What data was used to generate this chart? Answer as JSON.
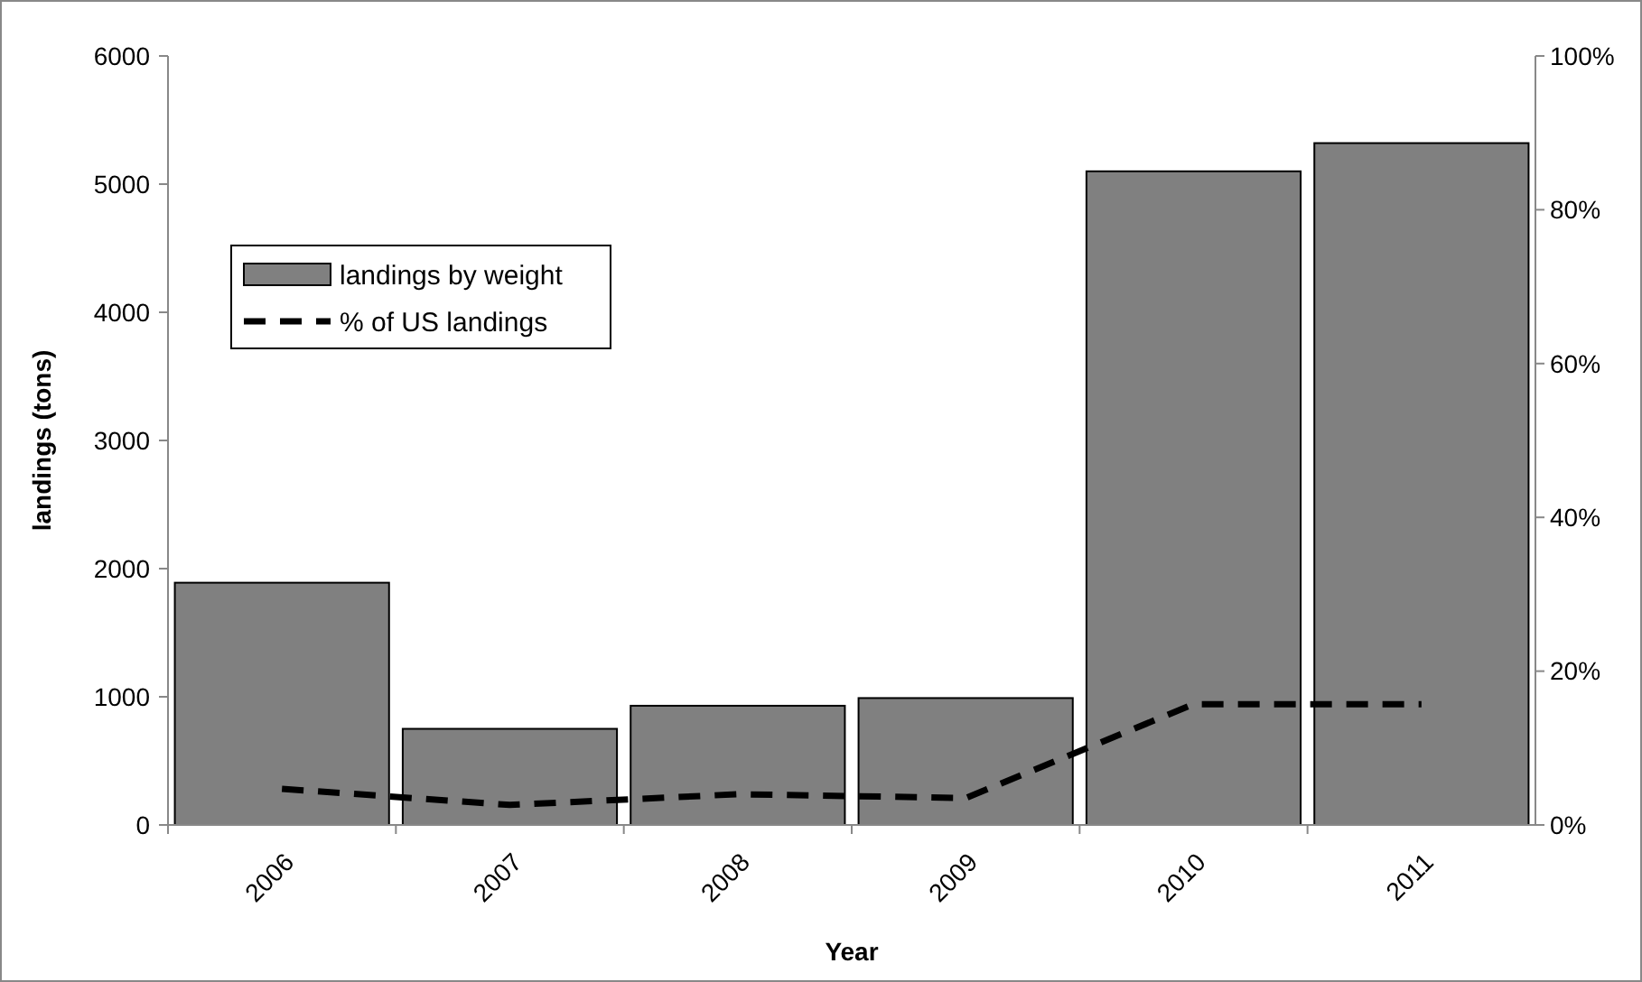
{
  "chart_data": {
    "type": "bar",
    "xlabel": "Year",
    "ylabel": "landings (tons)",
    "categories": [
      "2006",
      "2007",
      "2008",
      "2009",
      "2010",
      "2011"
    ],
    "series": [
      {
        "name": "landings by weight",
        "color": "#808080",
        "values": [
          1890,
          750,
          930,
          990,
          5100,
          5320
        ]
      },
      {
        "name": "% of US landings",
        "type": "line",
        "axis": "y2",
        "color": "#000000",
        "line_style": "dashed",
        "values": [
          4.7,
          2.6,
          4.0,
          3.5,
          15.7,
          15.7
        ]
      }
    ],
    "ylim": [
      0,
      6000
    ],
    "yticks": [
      0,
      1000,
      2000,
      3000,
      4000,
      5000,
      6000
    ],
    "y2lim": [
      0,
      100
    ],
    "y2ticks": [
      {
        "value": 0,
        "label": "0%"
      },
      {
        "value": 20,
        "label": "20%"
      },
      {
        "value": 40,
        "label": "40%"
      },
      {
        "value": 60,
        "label": "60%"
      },
      {
        "value": 80,
        "label": "80%"
      },
      {
        "value": 100,
        "label": "100%"
      }
    ],
    "legend": "top left",
    "grid": false
  }
}
